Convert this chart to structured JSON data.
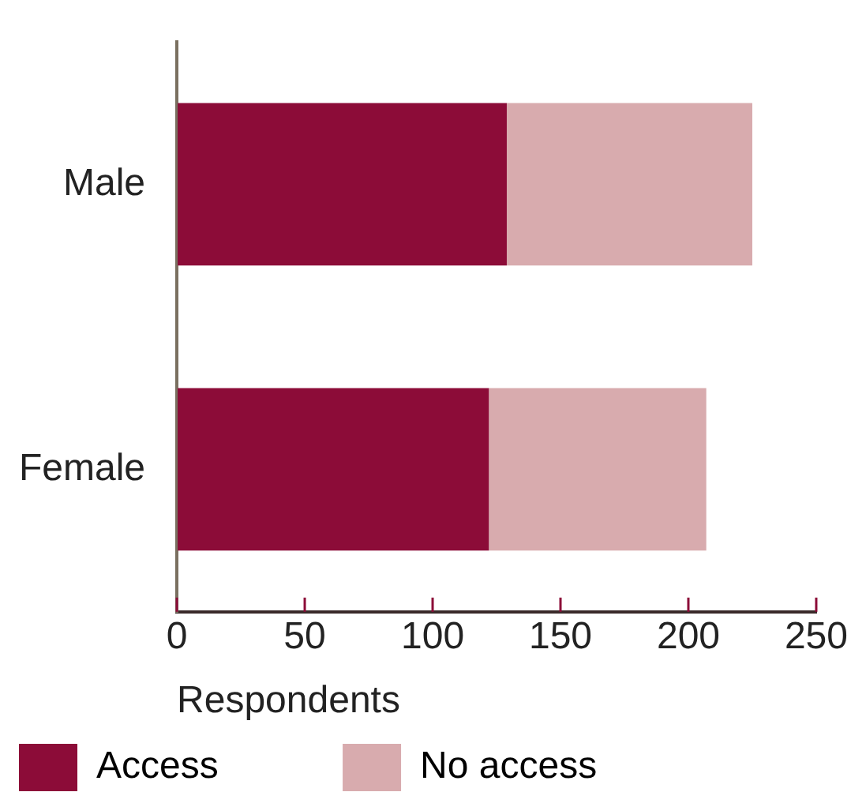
{
  "chart_data": {
    "type": "bar",
    "orientation": "horizontal",
    "stacked": true,
    "categories": [
      "Male",
      "Female"
    ],
    "series": [
      {
        "name": "Access",
        "color": "#8c0c38",
        "values": [
          129,
          122
        ]
      },
      {
        "name": "No access",
        "color": "#d8abae",
        "values": [
          96,
          85
        ]
      }
    ],
    "xlabel": "Respondents",
    "xlim": [
      0,
      250
    ],
    "xticks": [
      0,
      50,
      100,
      150,
      200,
      250
    ],
    "grid": false,
    "legend": "bottom"
  }
}
